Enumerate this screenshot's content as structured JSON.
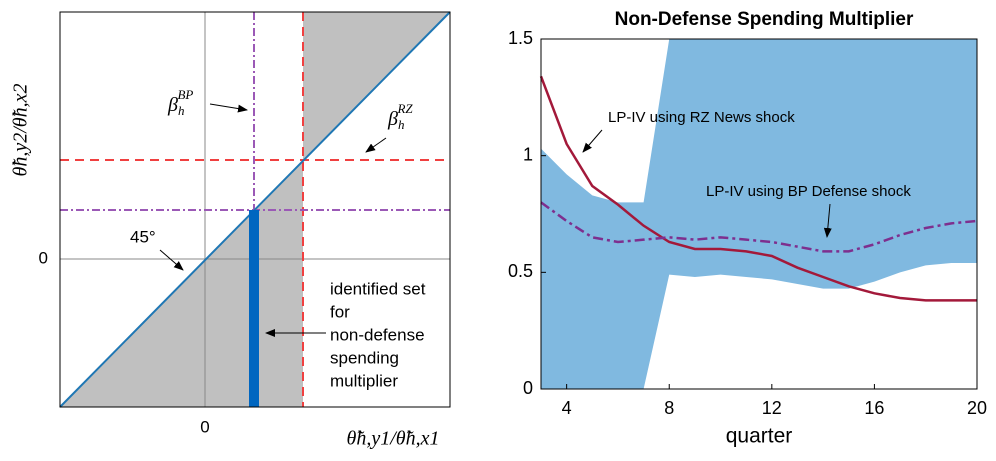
{
  "diagram": {
    "y_label": "θ̃h,y2/θ̃h,x2",
    "x_label": "θ̃h,y1/θ̃h,x1",
    "x_tick": "0",
    "y_tick": "0",
    "beta_bp": {
      "base": "β",
      "sub": "h",
      "sup": "BP"
    },
    "beta_rz": {
      "base": "β",
      "sub": "h",
      "sup": "RZ"
    },
    "angle_label": "45°",
    "identified_set": [
      "identified set",
      "for",
      "non-defense",
      "spending",
      "multiplier"
    ]
  },
  "chart_data": {
    "type": "line",
    "title": "Non-Defense Spending Multiplier",
    "x_label": "quarter",
    "x": [
      3,
      4,
      5,
      6,
      7,
      8,
      9,
      10,
      11,
      12,
      13,
      14,
      15,
      16,
      17,
      18,
      19,
      20
    ],
    "xlim": [
      3,
      20
    ],
    "xticks": [
      4,
      8,
      12,
      16,
      20
    ],
    "ylim": [
      0,
      1.5
    ],
    "yticks": [
      0,
      0.5,
      1,
      1.5
    ],
    "band": {
      "color": "#80b9e0",
      "lower": [
        0,
        0,
        0,
        0,
        0,
        0.49,
        0.48,
        0.49,
        0.48,
        0.47,
        0.45,
        0.43,
        0.43,
        0.46,
        0.5,
        0.53,
        0.54,
        0.54
      ],
      "upper": [
        1.03,
        0.92,
        0.83,
        0.8,
        0.8,
        1.5,
        1.5,
        1.5,
        1.5,
        1.5,
        1.5,
        1.5,
        1.5,
        1.5,
        1.5,
        1.5,
        1.5,
        1.5
      ]
    },
    "series": [
      {
        "name": "LP-IV using RZ News shock",
        "color": "#a3193a",
        "dash": "solid",
        "values": [
          1.34,
          1.05,
          0.87,
          0.79,
          0.7,
          0.63,
          0.6,
          0.6,
          0.59,
          0.57,
          0.52,
          0.48,
          0.44,
          0.41,
          0.39,
          0.38,
          0.38,
          0.38
        ]
      },
      {
        "name": "LP-IV using BP Defense shock",
        "color": "#7e2f8e",
        "dash": "dashdot",
        "values": [
          0.8,
          0.72,
          0.65,
          0.63,
          0.64,
          0.65,
          0.64,
          0.65,
          0.64,
          0.63,
          0.61,
          0.59,
          0.59,
          0.62,
          0.66,
          0.69,
          0.71,
          0.72
        ]
      }
    ]
  }
}
